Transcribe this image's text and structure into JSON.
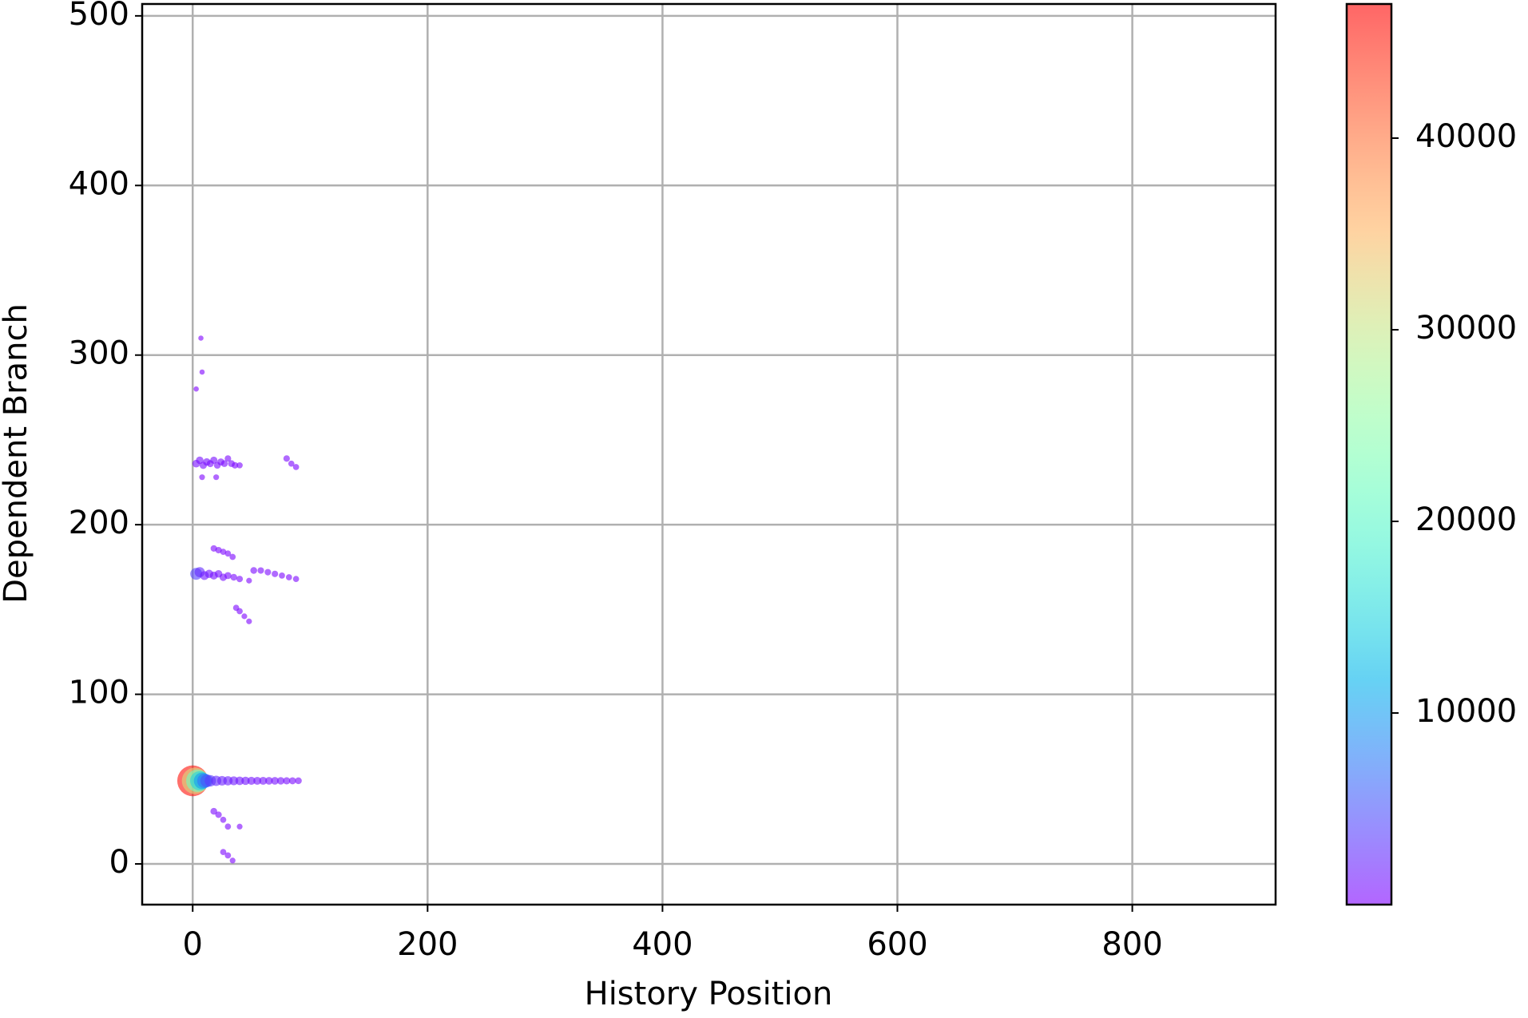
{
  "chart_data": {
    "type": "scatter",
    "x_label": "History Position",
    "y_label": "Dependent Branch",
    "xlim": [
      -43,
      922
    ],
    "ylim": [
      -24,
      507
    ],
    "xticks": [
      0,
      200,
      400,
      600,
      800
    ],
    "yticks": [
      0,
      100,
      200,
      300,
      400,
      500
    ],
    "grid": true,
    "colormap": "rainbow",
    "clim": [
      0,
      47000
    ],
    "cticks": [
      10000,
      20000,
      30000,
      40000
    ],
    "x": [
      0,
      2,
      4,
      6,
      8,
      10,
      12,
      15,
      20,
      25,
      30,
      35,
      40,
      45,
      50,
      55,
      60,
      65,
      70,
      75,
      80,
      85,
      90,
      3,
      6,
      9,
      12,
      15,
      18,
      21,
      24,
      27,
      30,
      33,
      36,
      40,
      80,
      84,
      88,
      8,
      20,
      3,
      6,
      10,
      14,
      18,
      22,
      26,
      30,
      35,
      40,
      18,
      22,
      26,
      30,
      34,
      52,
      58,
      64,
      70,
      76,
      82,
      88,
      48,
      37,
      40,
      44,
      48,
      18,
      22,
      26,
      30,
      40,
      26,
      30,
      34,
      7,
      8,
      3
    ],
    "y": [
      49,
      49,
      49,
      49,
      49,
      49,
      49,
      49,
      49,
      49,
      49,
      49,
      49,
      49,
      49,
      49,
      49,
      49,
      49,
      49,
      49,
      49,
      49,
      236,
      238,
      235,
      237,
      236,
      238,
      235,
      237,
      236,
      239,
      236,
      235,
      235,
      239,
      236,
      234,
      228,
      228,
      171,
      172,
      170,
      171,
      170,
      171,
      169,
      170,
      169,
      168,
      186,
      185,
      184,
      183,
      181,
      173,
      173,
      172,
      171,
      170,
      169,
      168,
      167,
      151,
      149,
      146,
      143,
      31,
      29,
      26,
      22,
      22,
      7,
      5,
      2,
      310,
      290,
      280
    ],
    "c": [
      46000,
      32000,
      22000,
      15000,
      10000,
      7000,
      5000,
      3500,
      2500,
      2000,
      1800,
      1500,
      1300,
      1200,
      1100,
      1000,
      1000,
      900,
      900,
      800,
      700,
      600,
      500,
      900,
      800,
      700,
      800,
      600,
      700,
      500,
      600,
      500,
      400,
      500,
      400,
      300,
      400,
      300,
      300,
      200,
      200,
      4000,
      2500,
      1500,
      1200,
      1000,
      800,
      700,
      600,
      500,
      400,
      400,
      400,
      300,
      300,
      300,
      500,
      400,
      400,
      400,
      300,
      300,
      300,
      200,
      300,
      300,
      200,
      200,
      500,
      400,
      300,
      300,
      200,
      300,
      300,
      200,
      100,
      100,
      100
    ]
  }
}
